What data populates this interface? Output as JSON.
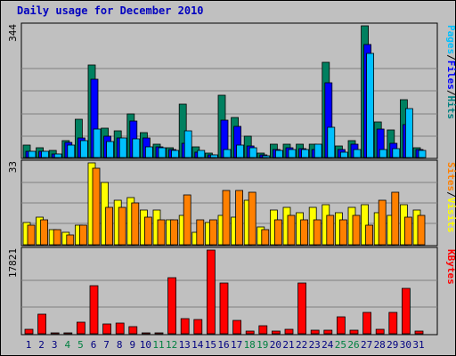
{
  "title": "Daily usage for December 2010",
  "chart_data": [
    {
      "type": "bar",
      "panel": "traffic",
      "max_label": "344",
      "ylim": [
        0,
        344
      ],
      "legend": [
        {
          "text": "Pages",
          "color": "#00c0ff"
        },
        {
          "text": "/",
          "color": "#000000"
        },
        {
          "text": "Files",
          "color": "#0000ff"
        },
        {
          "text": "/",
          "color": "#000000"
        },
        {
          "text": "Hits",
          "color": "#008080"
        }
      ],
      "series": [
        {
          "name": "Hits",
          "color": "#008060",
          "values": [
            32,
            26,
            18,
            43,
            100,
            242,
            76,
            69,
            114,
            65,
            35,
            26,
            140,
            27,
            12,
            162,
            105,
            56,
            12,
            35,
            36,
            36,
            36,
            248,
            30,
            43,
            344,
            93,
            72,
            151,
            26
          ]
        },
        {
          "name": "Files",
          "color": "#0000ff",
          "values": [
            17,
            17,
            10,
            40,
            50,
            205,
            55,
            50,
            96,
            51,
            29,
            20,
            38,
            15,
            8,
            97,
            82,
            30,
            6,
            22,
            25,
            23,
            22,
            196,
            20,
            35,
            296,
            74,
            37,
            87,
            22
          ]
        },
        {
          "name": "Pages",
          "color": "#00c0ff",
          "values": [
            17,
            17,
            9,
            32,
            43,
            75,
            42,
            51,
            48,
            28,
            26,
            18,
            70,
            18,
            7,
            22,
            33,
            25,
            5,
            18,
            20,
            22,
            35,
            80,
            14,
            20,
            272,
            20,
            24,
            127,
            18
          ]
        }
      ]
    },
    {
      "type": "bar",
      "panel": "visits",
      "max_label": "33",
      "ylim": [
        0,
        33
      ],
      "legend": [
        {
          "text": "Sites",
          "color": "#ff8000"
        },
        {
          "text": "/",
          "color": "#000000"
        },
        {
          "text": "Visits",
          "color": "#ffff00"
        }
      ],
      "series": [
        {
          "name": "Visits",
          "color": "#ffff00",
          "values": [
            9,
            11,
            6,
            5,
            8,
            33,
            25,
            18,
            19,
            14,
            14,
            10,
            12,
            5,
            9,
            12,
            11,
            18,
            7,
            14,
            15,
            13,
            15,
            16,
            13,
            15,
            16,
            13,
            12,
            16,
            14
          ]
        },
        {
          "name": "Sites",
          "color": "#ff8000",
          "values": [
            8,
            10,
            6,
            4,
            8,
            31,
            15,
            15,
            17,
            11,
            10,
            10,
            20,
            10,
            10,
            22,
            22,
            21,
            6,
            10,
            12,
            10,
            10,
            12,
            10,
            12,
            8,
            18,
            21,
            11,
            12
          ]
        }
      ]
    },
    {
      "type": "bar",
      "panel": "volume",
      "max_label": "17821",
      "ylim": [
        0,
        17821
      ],
      "legend": [
        {
          "text": "KBytes",
          "color": "#ff0000"
        }
      ],
      "series": [
        {
          "name": "KBytes",
          "color": "#ff0000",
          "values": [
            1000,
            4200,
            50,
            50,
            2400,
            10200,
            2000,
            2300,
            1600,
            100,
            100,
            11900,
            3300,
            3100,
            17821,
            10900,
            2800,
            600,
            1800,
            600,
            1000,
            10800,
            700,
            800,
            3600,
            800,
            4500,
            900,
            4500,
            9700,
            600
          ]
        }
      ]
    }
  ],
  "x_axis": {
    "categories": [
      "1",
      "2",
      "3",
      "4",
      "5",
      "6",
      "7",
      "8",
      "9",
      "10",
      "11",
      "12",
      "13",
      "14",
      "15",
      "16",
      "17",
      "18",
      "19",
      "20",
      "21",
      "22",
      "23",
      "24",
      "25",
      "26",
      "27",
      "28",
      "29",
      "30",
      "31"
    ],
    "weekend_days": [
      4,
      5,
      11,
      12,
      18,
      19,
      25,
      26
    ],
    "weekday_color": "#000080",
    "weekend_color": "#008040"
  }
}
